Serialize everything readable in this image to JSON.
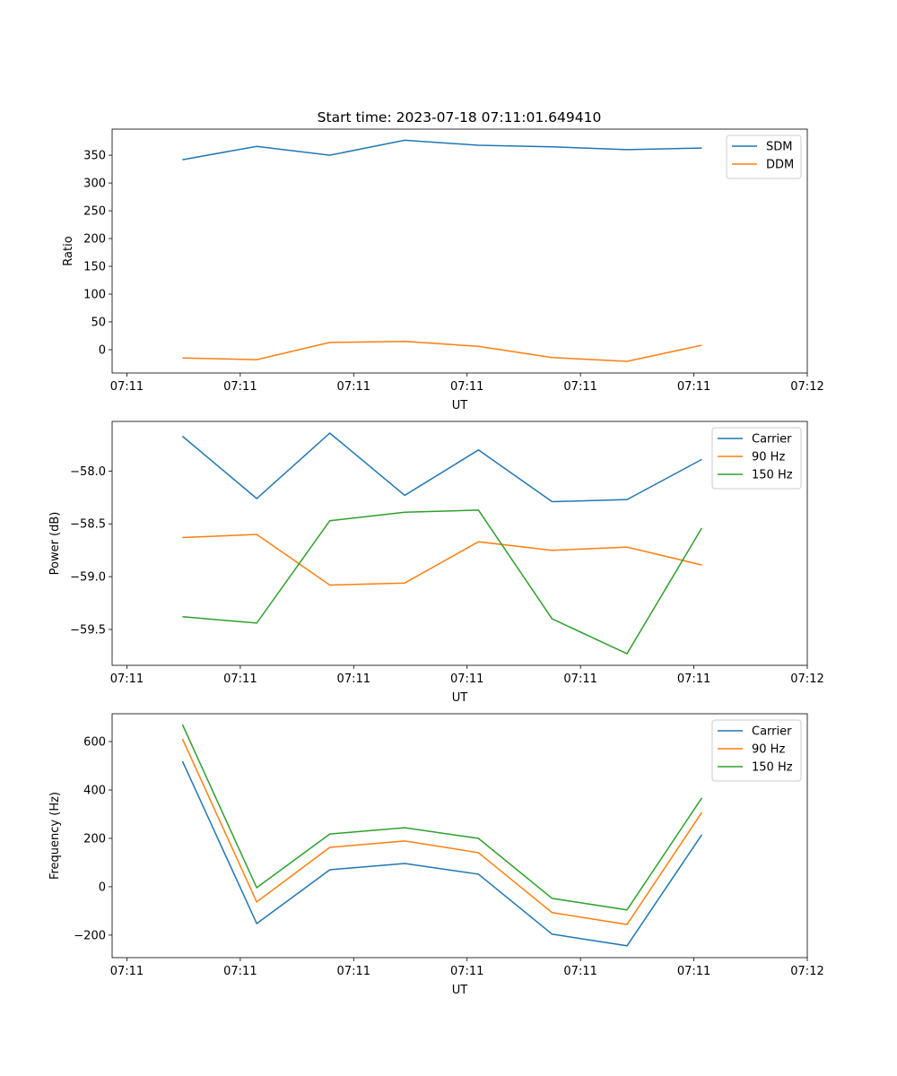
{
  "title": "Start time: 2023-07-18 07:11:01.649410",
  "colors": {
    "blue": "#1f77b4",
    "orange": "#ff7f0e",
    "green": "#2ca02c"
  },
  "chart_data": [
    {
      "type": "line",
      "xlabel": "UT",
      "ylabel": "Ratio",
      "x_unit": "seconds after 07:11:00",
      "x": [
        4.9,
        11.45,
        17.9,
        24.5,
        31.0,
        37.5,
        44.1,
        50.7
      ],
      "xlim": [
        -1.3,
        60
      ],
      "xticks": [
        0,
        10,
        20,
        30,
        40,
        50,
        60
      ],
      "xtick_labels": [
        "07:11",
        "07:11",
        "07:11",
        "07:11",
        "07:11",
        "07:11",
        "07:12"
      ],
      "ylim": [
        -42,
        397
      ],
      "yticks": [
        0,
        50,
        100,
        150,
        200,
        250,
        300,
        350
      ],
      "ytick_labels": [
        "0",
        "50",
        "100",
        "150",
        "200",
        "250",
        "300",
        "350"
      ],
      "legend_position": "top-right",
      "series": [
        {
          "name": "SDM",
          "color": "#1f77b4",
          "values": [
            342,
            366,
            350,
            377,
            368,
            365,
            360,
            363
          ]
        },
        {
          "name": "DDM",
          "color": "#ff7f0e",
          "values": [
            -15,
            -18,
            13,
            15,
            6,
            -14,
            -21,
            8
          ]
        }
      ]
    },
    {
      "type": "line",
      "xlabel": "UT",
      "ylabel": "Power (dB)",
      "x": [
        4.9,
        11.45,
        17.9,
        24.5,
        31.0,
        37.5,
        44.1,
        50.7
      ],
      "xlim": [
        -1.3,
        60
      ],
      "xticks": [
        0,
        10,
        20,
        30,
        40,
        50,
        60
      ],
      "xtick_labels": [
        "07:11",
        "07:11",
        "07:11",
        "07:11",
        "07:11",
        "07:11",
        "07:12"
      ],
      "ylim": [
        -59.84,
        -57.53
      ],
      "yticks": [
        -58.0,
        -58.5,
        -59.0,
        -59.5
      ],
      "ytick_labels": [
        "−58.0",
        "−58.5",
        "−59.0",
        "−59.5"
      ],
      "legend_position": "top-right",
      "series": [
        {
          "name": "Carrier",
          "color": "#1f77b4",
          "values": [
            -57.67,
            -58.26,
            -57.64,
            -58.23,
            -57.8,
            -58.29,
            -58.27,
            -57.89
          ]
        },
        {
          "name": "90 Hz",
          "color": "#ff7f0e",
          "values": [
            -58.63,
            -58.6,
            -59.08,
            -59.06,
            -58.67,
            -58.75,
            -58.72,
            -58.89
          ]
        },
        {
          "name": "150 Hz",
          "color": "#2ca02c",
          "values": [
            -59.38,
            -59.44,
            -58.47,
            -58.39,
            -58.37,
            -59.4,
            -59.73,
            -58.54
          ]
        }
      ]
    },
    {
      "type": "line",
      "xlabel": "UT",
      "ylabel": "Frequency (Hz)",
      "x": [
        4.9,
        11.45,
        17.9,
        24.5,
        31.0,
        37.5,
        44.1,
        50.7
      ],
      "xlim": [
        -1.3,
        60
      ],
      "xticks": [
        0,
        10,
        20,
        30,
        40,
        50,
        60
      ],
      "xtick_labels": [
        "07:11",
        "07:11",
        "07:11",
        "07:11",
        "07:11",
        "07:11",
        "07:12"
      ],
      "ylim": [
        -293,
        715
      ],
      "yticks": [
        -200,
        0,
        200,
        400,
        600
      ],
      "ytick_labels": [
        "−200",
        "0",
        "200",
        "400",
        "600"
      ],
      "legend_position": "top-right",
      "series": [
        {
          "name": "Carrier",
          "color": "#1f77b4",
          "values": [
            519,
            -152,
            70,
            96,
            52,
            -196,
            -244,
            215
          ]
        },
        {
          "name": "90 Hz",
          "color": "#ff7f0e",
          "values": [
            611,
            -63,
            163,
            189,
            141,
            -107,
            -156,
            307
          ]
        },
        {
          "name": "150 Hz",
          "color": "#2ca02c",
          "values": [
            670,
            -4,
            218,
            244,
            200,
            -48,
            -96,
            367
          ]
        }
      ]
    }
  ]
}
